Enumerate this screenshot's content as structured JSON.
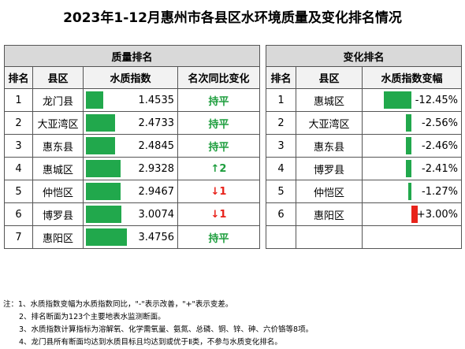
{
  "title": "2023年1-12月惠州市各县区水环境质量及变化排名情况",
  "left": {
    "section": "质量排名",
    "headers": [
      "排名",
      "县区",
      "水质指数",
      "名次同比变化"
    ],
    "rows": [
      {
        "rank": "1",
        "district": "龙门县",
        "index": "1.4535",
        "index_value": 1.4535,
        "change": "持平",
        "change_type": "flat"
      },
      {
        "rank": "2",
        "district": "大亚湾区",
        "index": "2.4733",
        "index_value": 2.4733,
        "change": "持平",
        "change_type": "flat"
      },
      {
        "rank": "3",
        "district": "惠东县",
        "index": "2.4845",
        "index_value": 2.4845,
        "change": "持平",
        "change_type": "flat"
      },
      {
        "rank": "4",
        "district": "惠城区",
        "index": "2.9328",
        "index_value": 2.9328,
        "change": "↑2",
        "change_type": "up"
      },
      {
        "rank": "5",
        "district": "仲恺区",
        "index": "2.9467",
        "index_value": 2.9467,
        "change": "↓1",
        "change_type": "down"
      },
      {
        "rank": "6",
        "district": "博罗县",
        "index": "3.0074",
        "index_value": 3.0074,
        "change": "↓1",
        "change_type": "down"
      },
      {
        "rank": "7",
        "district": "惠阳区",
        "index": "3.4756",
        "index_value": 3.4756,
        "change": "持平",
        "change_type": "flat"
      }
    ]
  },
  "right": {
    "section": "变化排名",
    "headers": [
      "排名",
      "县区",
      "水质指数变幅"
    ],
    "rows": [
      {
        "rank": "1",
        "district": "惠城区",
        "change": "-12.45%",
        "change_value": -12.45
      },
      {
        "rank": "2",
        "district": "大亚湾区",
        "change": "-2.56%",
        "change_value": -2.56
      },
      {
        "rank": "3",
        "district": "惠东县",
        "change": "-2.46%",
        "change_value": -2.46
      },
      {
        "rank": "4",
        "district": "博罗县",
        "change": "-2.41%",
        "change_value": -2.41
      },
      {
        "rank": "5",
        "district": "仲恺区",
        "change": "-1.27%",
        "change_value": -1.27
      },
      {
        "rank": "6",
        "district": "惠阳区",
        "change": "+3.00%",
        "change_value": 3.0
      }
    ]
  },
  "colors": {
    "bar_green": "#21a84c",
    "bar_red": "#e8231b",
    "header_bg": "#d9d9d9",
    "flat_text": "#1e9e3e",
    "down_text": "#e8231b"
  },
  "notes": [
    "注：1、水质指数变幅为水质指数同比，\"-\"表示改善，\"+\"表示变差。",
    "2、排名断面为123个主要地表水监测断面。",
    "3、水质指数计算指标为溶解氧、化学需氧量、氨氮、总磷、铜、锌、砷、六价铬等8项。",
    "4、龙门县所有断面均达到水质目标且均达到或优于Ⅱ类，不参与水质变化排名。"
  ]
}
